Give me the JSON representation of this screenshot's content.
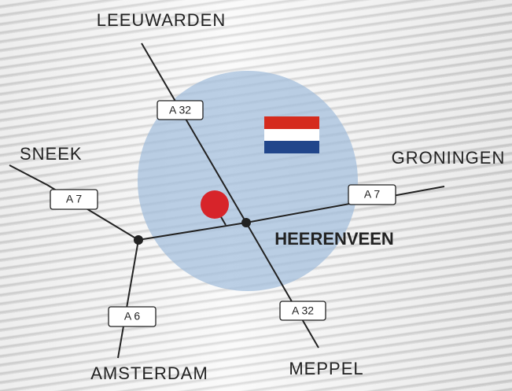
{
  "cities": [
    "LEEUWARDEN",
    "SNEEK",
    "GRONINGEN",
    "AMSTERDAM",
    "MEPPEL"
  ],
  "center": "HEERENVEEN",
  "roads": [
    "A 32",
    "A 7",
    "A 7",
    "A 6",
    "A 32"
  ]
}
